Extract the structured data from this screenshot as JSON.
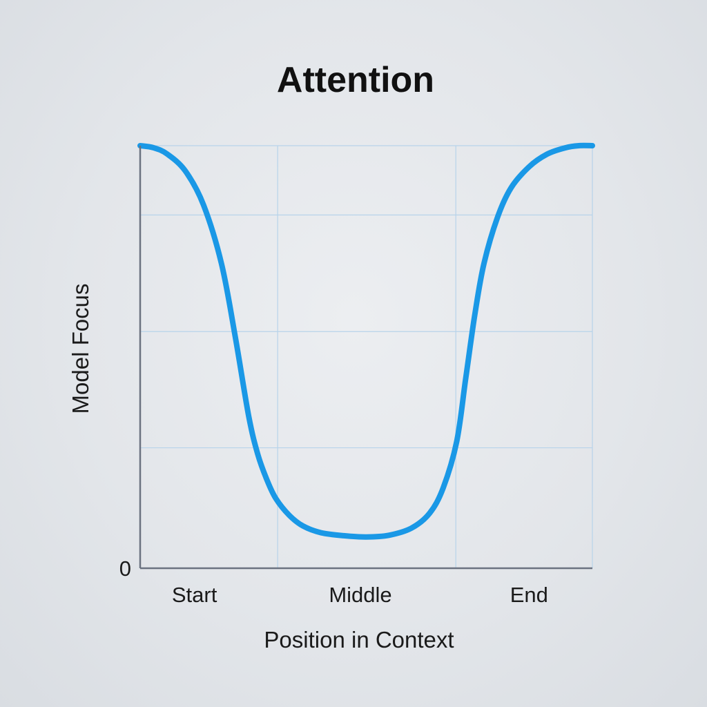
{
  "chart_data": {
    "type": "line",
    "title": "Attention",
    "xlabel": "Position in Context",
    "ylabel": "Model Focus",
    "x_tick_labels": [
      "Start",
      "Middle",
      "End"
    ],
    "x_tick_values": [
      0.12,
      0.487,
      0.86
    ],
    "y_tick_labels": [
      "0"
    ],
    "y_tick_values": [
      0
    ],
    "xlim": [
      0,
      1
    ],
    "ylim": [
      0,
      1
    ],
    "grid": true,
    "grid_x": [
      0,
      0.304,
      0.698,
      1
    ],
    "grid_y": [
      0.285,
      0.56,
      0.836,
      1
    ],
    "series": [
      {
        "color": "#1a98e6",
        "x": [
          0,
          0.03,
          0.06,
          0.1,
          0.14,
          0.18,
          0.21,
          0.24,
          0.26,
          0.28,
          0.3,
          0.33,
          0.36,
          0.4,
          0.45,
          0.5,
          0.55,
          0.6,
          0.64,
          0.67,
          0.7,
          0.72,
          0.74,
          0.76,
          0.79,
          0.82,
          0.86,
          0.9,
          0.94,
          0.97,
          1
        ],
        "y": [
          1,
          0.995,
          0.98,
          0.94,
          0.86,
          0.72,
          0.55,
          0.36,
          0.27,
          0.21,
          0.165,
          0.125,
          0.1,
          0.084,
          0.077,
          0.074,
          0.078,
          0.095,
          0.13,
          0.19,
          0.3,
          0.45,
          0.6,
          0.72,
          0.83,
          0.9,
          0.95,
          0.98,
          0.995,
          1,
          1
        ]
      }
    ]
  }
}
